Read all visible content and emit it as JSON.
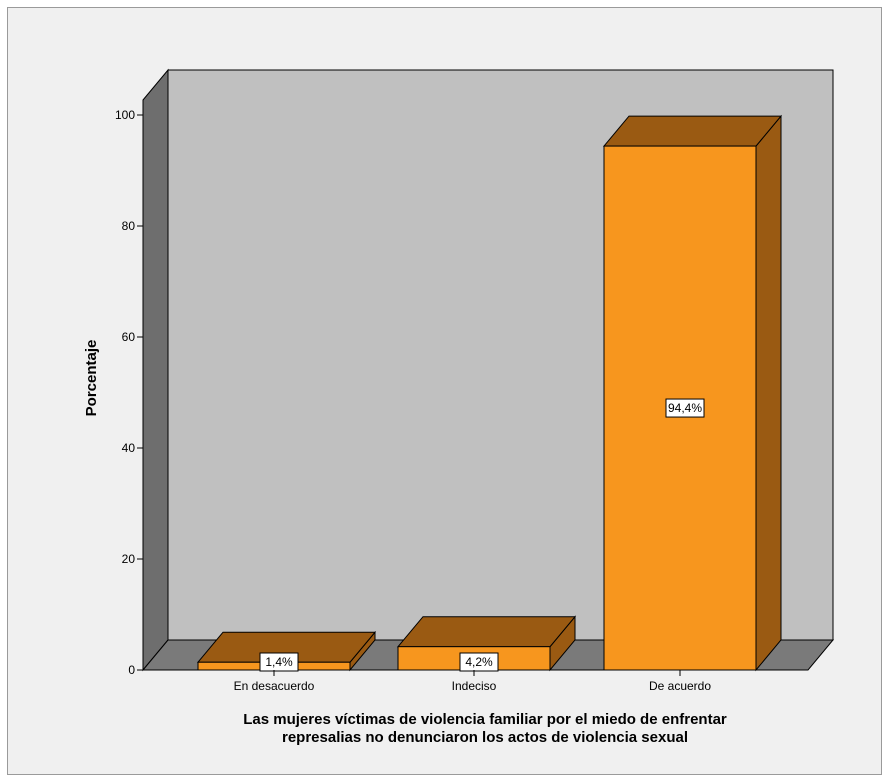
{
  "chart_data": {
    "type": "bar",
    "title": "",
    "categories": [
      "En desacuerdo",
      "Indeciso",
      "De acuerdo"
    ],
    "values": [
      1.4,
      4.2,
      94.4
    ],
    "data_labels": [
      "1,4%",
      "4,2%",
      "94,4%"
    ],
    "ylabel": "Porcentaje",
    "xlabel_lines": [
      "Las mujeres víctimas de violencia familiar por el miedo de enfrentar",
      "represalias no denunciaron los actos de violencia sexual"
    ],
    "yticks": [
      "0",
      "20",
      "40",
      "60",
      "80",
      "100"
    ],
    "ylim": [
      0,
      100
    ],
    "grid": false,
    "style": "3d",
    "colors": {
      "bar_front": "#f7961e",
      "bar_top": "#9a5a12",
      "bar_side": "#9a5a12",
      "back_wall": "#c0c0c0",
      "side_wall": "#6e6e6e",
      "floor": "#7a7a7a",
      "background": "#f0f0f0"
    }
  }
}
